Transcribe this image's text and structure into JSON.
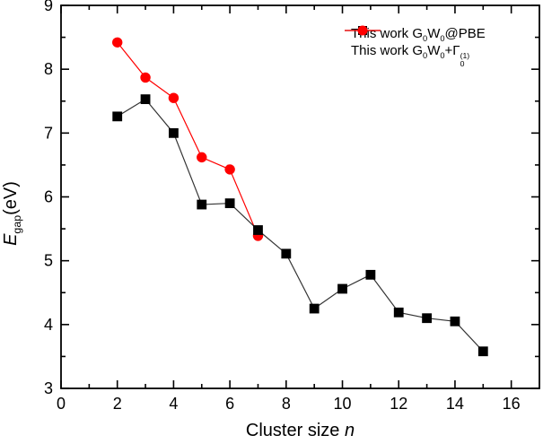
{
  "figure": {
    "background": "#ffffff",
    "axis_color": "#000000"
  },
  "chart_data": {
    "type": "line",
    "title": "",
    "xlabel": "Cluster size n",
    "ylabel": "Egap (eV)",
    "xlabel_segments": [
      {
        "t": "Cluster size "
      },
      {
        "t": "n",
        "s": "italic"
      }
    ],
    "ylabel_segments": [
      {
        "t": "E",
        "s": "italic"
      },
      {
        "t": "gap",
        "s": "sub"
      },
      {
        "t": "(eV)"
      }
    ],
    "xlim": [
      0,
      17
    ],
    "ylim": [
      3,
      9
    ],
    "x_major_ticks": [
      0,
      2,
      4,
      6,
      8,
      10,
      12,
      14,
      16
    ],
    "x_minor_ticks": [
      1,
      3,
      5,
      7,
      9,
      11,
      13,
      15
    ],
    "y_major_ticks": [
      3,
      4,
      5,
      6,
      7,
      8,
      9
    ],
    "y_minor_ticks": [
      3.5,
      4.5,
      5.5,
      6.5,
      7.5,
      8.5
    ],
    "grid": false,
    "legend_position": "top-right",
    "series": [
      {
        "name": "This work G0W0+Gamma0(1)",
        "marker": "circle",
        "marker_color": "#ff0000",
        "line_color": "#ff0000",
        "x": [
          2,
          3,
          4,
          5,
          6,
          7
        ],
        "y": [
          8.42,
          7.87,
          7.55,
          6.62,
          6.43,
          5.39
        ],
        "legend_segments": [
          {
            "t": "This work G"
          },
          {
            "t": "0",
            "s": "sub"
          },
          {
            "t": "W"
          },
          {
            "t": "0",
            "s": "sub"
          },
          {
            "t": "+Γ"
          },
          {
            "s": "stack",
            "sup": "(1)",
            "sub": "0"
          }
        ],
        "legend_order": 2
      },
      {
        "name": "This work G0W0@PBE",
        "marker": "square",
        "marker_color": "#000000",
        "line_color": "#333333",
        "x": [
          2,
          3,
          4,
          5,
          6,
          7,
          8,
          9,
          10,
          11,
          12,
          13,
          14,
          15
        ],
        "y": [
          7.26,
          7.53,
          7.0,
          5.88,
          5.9,
          5.48,
          5.11,
          4.25,
          4.56,
          4.78,
          4.19,
          4.1,
          4.05,
          3.58
        ],
        "legend_segments": [
          {
            "t": "This work G"
          },
          {
            "t": "0",
            "s": "sub"
          },
          {
            "t": "W"
          },
          {
            "t": "0",
            "s": "sub"
          },
          {
            "t": "@PBE"
          }
        ],
        "legend_order": 1
      }
    ]
  }
}
